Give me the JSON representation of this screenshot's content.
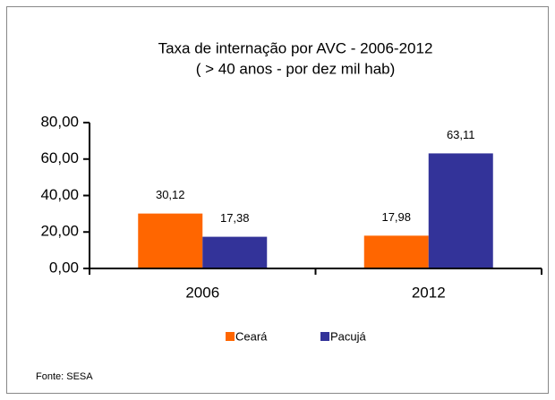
{
  "chart_data": {
    "type": "bar",
    "title": "Taxa de internação por AVC - 2006-2012",
    "subtitle": "( > 40 anos - por dez mil hab)",
    "categories": [
      "2006",
      "2012"
    ],
    "series": [
      {
        "name": "Ceará",
        "color": "#ff6600",
        "values": [
          30.12,
          17.98
        ],
        "value_labels": [
          "30,12",
          "17,98"
        ]
      },
      {
        "name": "Pacujá",
        "color": "#333399",
        "values": [
          17.38,
          63.11
        ],
        "value_labels": [
          "17,38",
          "63,11"
        ]
      }
    ],
    "ylim": [
      0,
      80
    ],
    "yticks": [
      {
        "value": 0,
        "label": "0,00"
      },
      {
        "value": 20,
        "label": "20,00"
      },
      {
        "value": 40,
        "label": "40,00"
      },
      {
        "value": 60,
        "label": "60,00"
      },
      {
        "value": 80,
        "label": "80,00"
      }
    ],
    "grid": false,
    "legend": "bottom",
    "source": "Fonte: SESA"
  }
}
